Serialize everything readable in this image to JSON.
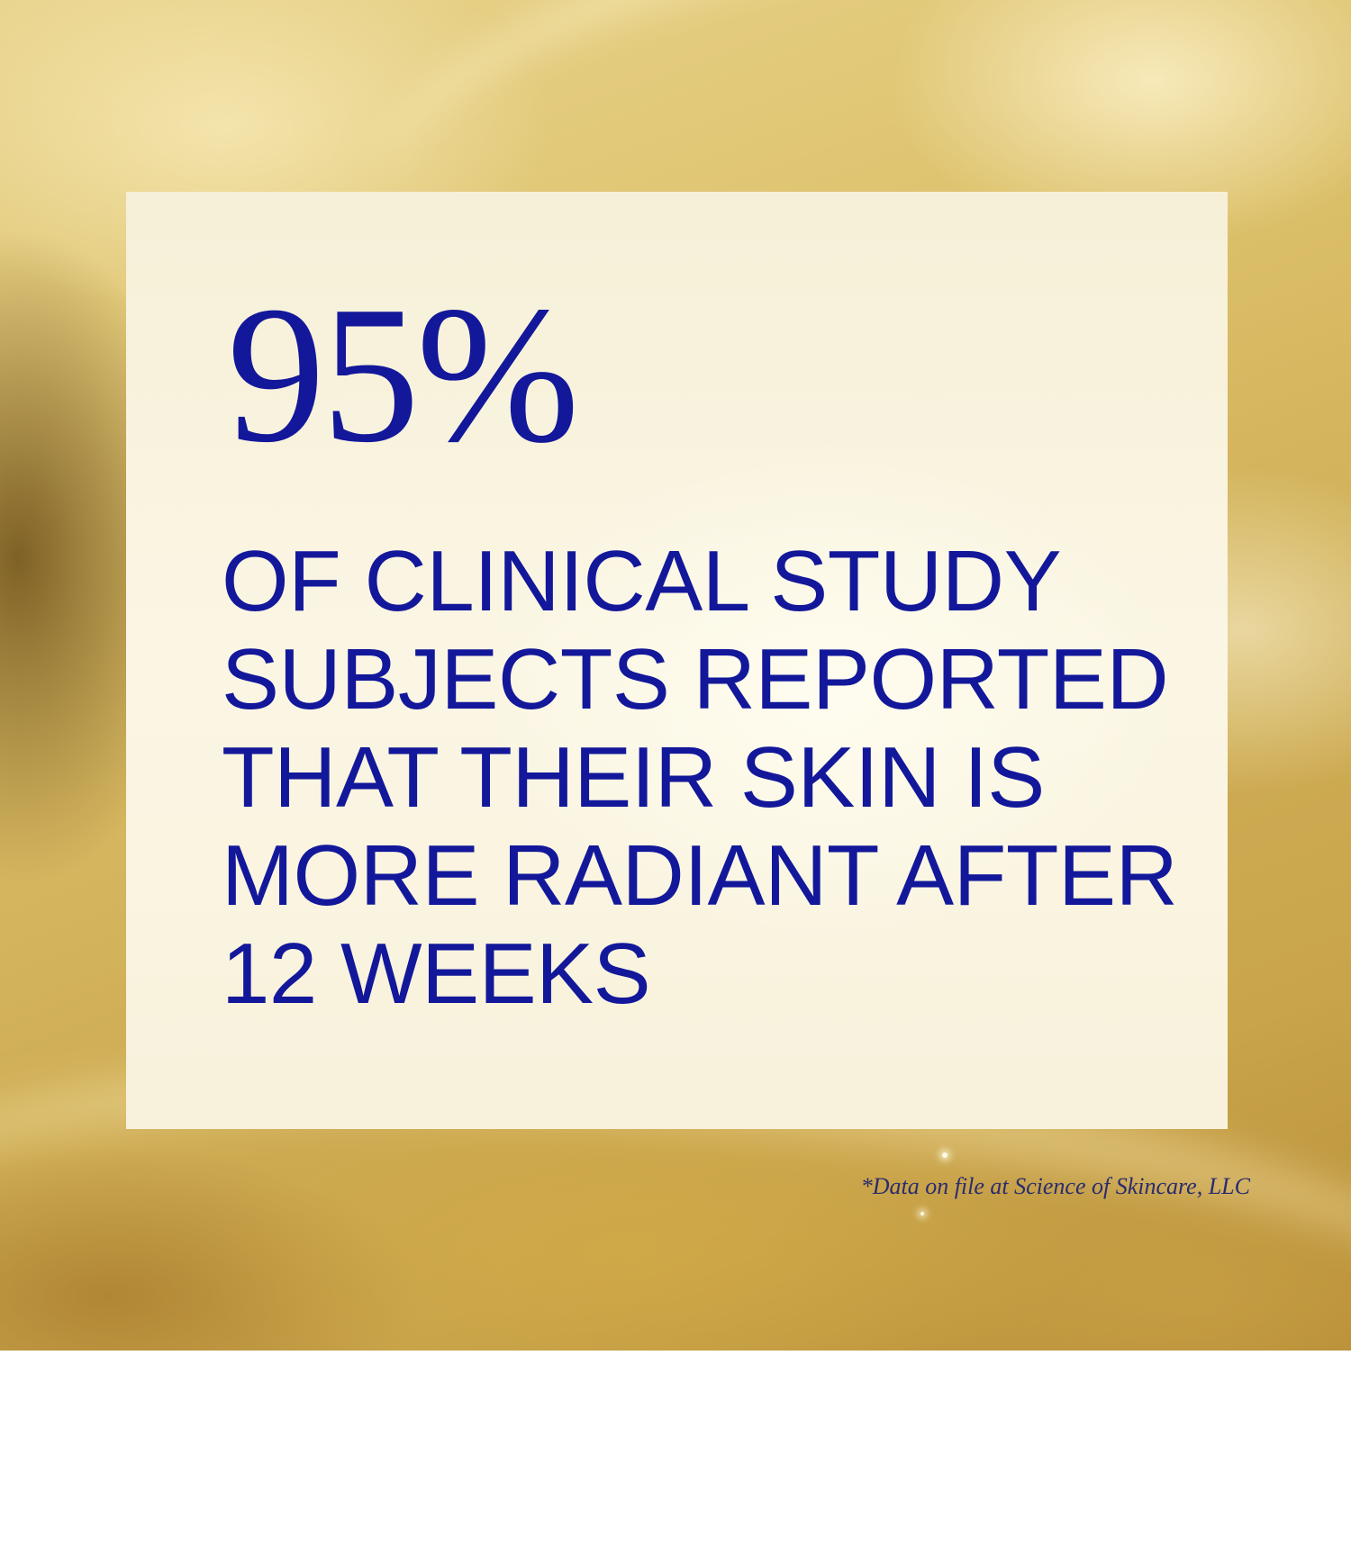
{
  "stat": {
    "percentage": "95%",
    "statement": "OF CLINICAL STUDY\nSUBJECTS REPORTED\nTHAT THEIR SKIN IS\nMORE RADIANT AFTER\n12 WEEKS"
  },
  "footnote": "*Data on file at Science of Skincare, LLC",
  "colors": {
    "text_primary": "#13189a",
    "panel": "#f8f2dc",
    "background_gold": "#d2b35c"
  }
}
